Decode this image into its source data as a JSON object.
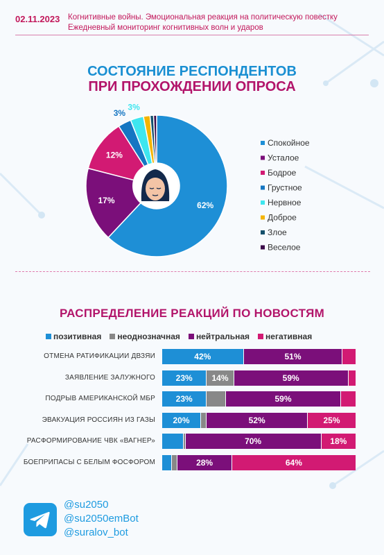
{
  "header": {
    "date": "02.11.2023",
    "line1": "Когнитивные войны. Эмоциональная реакция на политическую повестку",
    "line2": "Ежедневный мониторинг когнитивных волн и ударов"
  },
  "chart_data": [
    {
      "type": "pie",
      "title_line1": "СОСТОЯНИЕ РЕСПОНДЕНТОВ",
      "title_line2": "ПРИ ПРОХОЖДЕНИИ ОПРОСА",
      "slices": [
        {
          "name": "Спокойное",
          "value": 62,
          "label": "62%",
          "color": "#1e8fd6"
        },
        {
          "name": "Усталое",
          "value": 17,
          "label": "17%",
          "color": "#7b0f7a"
        },
        {
          "name": "Бодрое",
          "value": 12,
          "label": "12%",
          "color": "#d21a73"
        },
        {
          "name": "Грустное",
          "value": 3,
          "label": "3%",
          "color": "#1576c2"
        },
        {
          "name": "Нервное",
          "value": 3,
          "label": "3%",
          "color": "#3ee6ef"
        },
        {
          "name": "Доброе",
          "value": 1.5,
          "label": "",
          "color": "#f4b400"
        },
        {
          "name": "Злое",
          "value": 0.8,
          "label": "",
          "color": "#14506b"
        },
        {
          "name": "Веселое",
          "value": 0.7,
          "label": "",
          "color": "#3b0b4a"
        }
      ],
      "legend_position": "right"
    },
    {
      "type": "bar",
      "stacked": true,
      "orientation": "horizontal",
      "title": "РАСПРЕДЕЛЕНИЕ РЕАКЦИЙ ПО НОВОСТЯМ",
      "series": [
        {
          "name": "позитивная",
          "color": "#1e8fd6"
        },
        {
          "name": "неоднозначная",
          "color": "#888888"
        },
        {
          "name": "нейтральная",
          "color": "#7b0f7a"
        },
        {
          "name": "негативная",
          "color": "#d21a73"
        }
      ],
      "rows": [
        {
          "label": "Отмена ратификации ДВЗЯИ",
          "values": [
            42,
            0,
            51,
            7
          ],
          "labels": [
            "42%",
            "",
            "51%",
            ""
          ]
        },
        {
          "label": "Заявление Залужного",
          "values": [
            23,
            14,
            59,
            4
          ],
          "labels": [
            "23%",
            "14%",
            "59%",
            ""
          ]
        },
        {
          "label": "Подрыв американской МБР",
          "values": [
            23,
            10,
            59,
            8
          ],
          "labels": [
            "23%",
            "",
            "59%",
            ""
          ]
        },
        {
          "label": "Эвакуация россиян из Газы",
          "values": [
            20,
            3,
            52,
            25
          ],
          "labels": [
            "20%",
            "",
            "52%",
            "25%"
          ]
        },
        {
          "label": "Расформирование ЧВК «Вагнер»",
          "values": [
            11,
            1,
            70,
            18
          ],
          "labels": [
            "",
            "",
            "70%",
            "18%"
          ]
        },
        {
          "label": "Боеприпасы с белым фосфором",
          "values": [
            5,
            3,
            28,
            64
          ],
          "labels": [
            "",
            "",
            "28%",
            "64%"
          ]
        }
      ]
    }
  ],
  "footer": {
    "icon": "telegram-icon",
    "handles": [
      "@su2050",
      "@su2050emBot",
      "@suralov_bot"
    ]
  }
}
